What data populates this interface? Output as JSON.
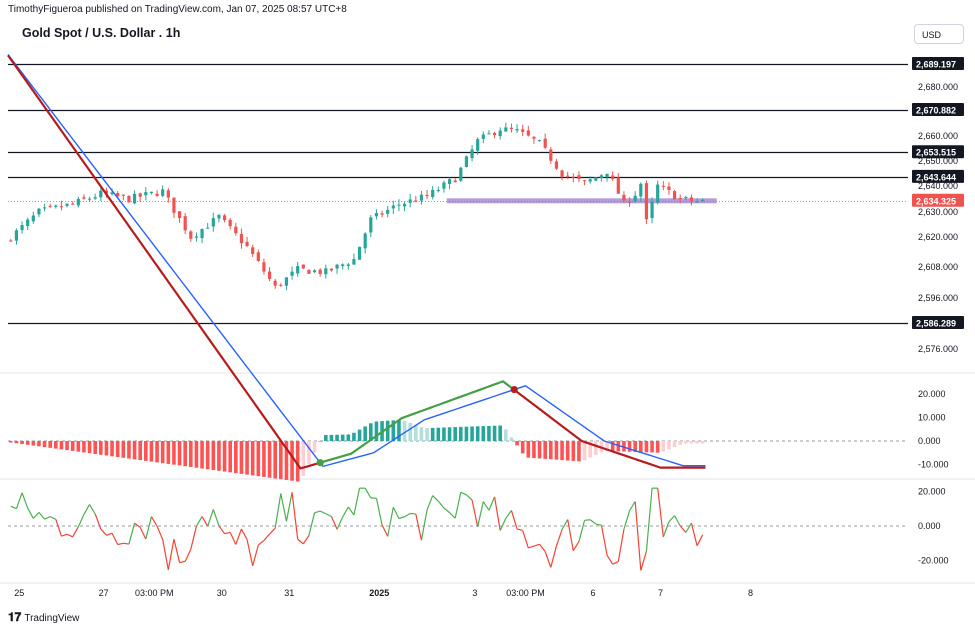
{
  "header": {
    "published_by": "TimothyFigueroa published on TradingView.com, Jan 07, 2025 08:57 UTC+8",
    "symbol_title": "Gold Spot / U.S. Dollar . 1h",
    "currency_button": "USD"
  },
  "footer": {
    "brand": "TradingView"
  },
  "colors": {
    "bull": "#26a69a",
    "bear": "#ef5350",
    "macd_line_up": "#43a047",
    "macd_line_down": "#b71c1c",
    "signal_line": "#2962ff",
    "hist_up_strong": "#26a69a",
    "hist_up_weak": "#b2dfdb",
    "hist_down_strong": "#ff5252",
    "hist_down_weak": "#ffcdd2",
    "zone": "#b39ddb",
    "osc_up": "#4caf50",
    "osc_down": "#f44336",
    "level_line": "#131722"
  },
  "chart_data": [
    {
      "type": "candlestick",
      "title": "Gold Spot / U.S. Dollar . 1h",
      "y_axis_ticks": [
        "2,576.000",
        "2,586.289",
        "2,596.000",
        "2,608.000",
        "2,620.000",
        "2,630.000",
        "2,640.000",
        "2,650.000",
        "2,660.000",
        "2,670.882",
        "2,680.000",
        "2,689.197"
      ],
      "horizontal_levels": [
        {
          "value": 2689.197,
          "label": "2,689.197"
        },
        {
          "value": 2670.882,
          "label": "2,670.882"
        },
        {
          "value": 2653.515,
          "label": "2,653.515"
        },
        {
          "value": 2643.644,
          "label": "2,643.644"
        },
        {
          "value": 2586.289,
          "label": "2,586.289"
        }
      ],
      "last_price": {
        "value": 2634.325,
        "label": "2,634.325"
      },
      "support_zone": {
        "value": 2634.3,
        "x_start": 78,
        "x_end": 126
      },
      "x_axis_ticks": [
        "25",
        "27",
        "03:00 PM",
        "30",
        "31",
        "2025",
        "3",
        "03:00 PM",
        "6",
        "7",
        "8"
      ],
      "x_tick_positions": [
        2,
        17,
        26,
        38,
        50,
        66,
        83,
        92,
        104,
        116,
        132
      ],
      "ylim": [
        2570,
        2695
      ],
      "xlim": [
        0,
        160
      ],
      "anchors": [
        [
          0,
          2618
        ],
        [
          6,
          2630
        ],
        [
          12,
          2633
        ],
        [
          17,
          2637
        ],
        [
          22,
          2635
        ],
        [
          28,
          2638
        ],
        [
          33,
          2620
        ],
        [
          38,
          2628
        ],
        [
          43,
          2616
        ],
        [
          48,
          2600
        ],
        [
          52,
          2607
        ],
        [
          57,
          2606
        ],
        [
          62,
          2611
        ],
        [
          65,
          2627
        ],
        [
          70,
          2633
        ],
        [
          75,
          2636
        ],
        [
          80,
          2643
        ],
        [
          84,
          2658
        ],
        [
          88,
          2663
        ],
        [
          91,
          2662
        ],
        [
          95,
          2657
        ],
        [
          99,
          2645
        ],
        [
          103,
          2641
        ],
        [
          107,
          2646
        ],
        [
          110,
          2633
        ],
        [
          112,
          2637
        ],
        [
          113,
          2641
        ],
        [
          114,
          2626
        ],
        [
          116,
          2640
        ],
        [
          120,
          2635
        ],
        [
          123,
          2634
        ]
      ]
    },
    {
      "type": "line",
      "title": "MACD",
      "y_axis_ticks": [
        "20.000",
        "10.000",
        "0.000",
        "-10.000"
      ],
      "ylim": [
        -15,
        25
      ],
      "signal_points": [
        [
          46,
          20.5
        ],
        [
          56,
          -10.8
        ],
        [
          65,
          -5
        ],
        [
          74,
          9
        ],
        [
          92,
          23.5
        ],
        [
          106,
          0
        ],
        [
          120,
          -10.5
        ]
      ]
    },
    {
      "type": "line",
      "title": "Oscillator",
      "y_axis_ticks": [
        "20.000",
        "0.000",
        "-20.000"
      ],
      "ylim": [
        -30,
        25
      ]
    }
  ]
}
